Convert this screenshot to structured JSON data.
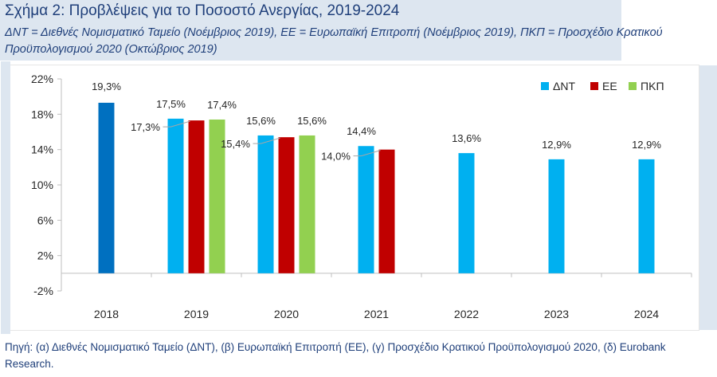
{
  "header": {
    "title": "Σχήμα 2: Προβλέψεις για το Ποσοστό Ανεργίας, 2019-2024",
    "subtitle": "ΔΝΤ = Διεθνές Νομισματικό Ταμείο (Νοέμβριος 2019), ΕΕ = Ευρωπαϊκή Επιτροπή (Νοέμβριος 2019), ΠΚΠ = Προσχέδιο Κρατικού Προϋπολογισμού 2020 (Οκτώβριος 2019)"
  },
  "source": "Πηγή: (α) Διεθνές Νομισματικό Ταμείο (ΔΝΤ), (β) Ευρωπαϊκή Επιτροπή (ΕΕ), (γ) Προσχέδιο Κρατικού Προϋπολογισμού 2020, (δ) Eurobank Research.",
  "chart_data": {
    "type": "bar",
    "title": "",
    "xlabel": "",
    "ylabel": "",
    "ylim": [
      -2,
      22
    ],
    "yticks": [
      -2,
      2,
      6,
      10,
      14,
      18,
      22
    ],
    "ytick_labels": [
      "-2%",
      "2%",
      "6%",
      "10%",
      "14%",
      "18%",
      "22%"
    ],
    "categories": [
      "2018",
      "2019",
      "2020",
      "2021",
      "2022",
      "2023",
      "2024"
    ],
    "legend_position": "top-right",
    "actual": {
      "category": "2018",
      "value": 19.3,
      "label": "19,3%",
      "color": "#0070c0"
    },
    "series": [
      {
        "name": "ΔΝΤ",
        "color": "#00b0f0",
        "values": [
          null,
          17.5,
          15.6,
          14.4,
          13.6,
          12.9,
          12.9
        ],
        "labels": [
          null,
          "17,5%",
          "15,6%",
          "14,4%",
          "13,6%",
          "12,9%",
          "12,9%"
        ]
      },
      {
        "name": "ΕΕ",
        "color": "#c00000",
        "values": [
          null,
          17.3,
          15.4,
          14.0,
          null,
          null,
          null
        ],
        "labels": [
          null,
          "17,3%",
          "15,4%",
          "14,0%",
          null,
          null,
          null
        ]
      },
      {
        "name": "ΠΚΠ",
        "color": "#92d050",
        "values": [
          null,
          17.4,
          15.6,
          null,
          null,
          null,
          null
        ],
        "labels": [
          null,
          "17,4%",
          "15,6%",
          null,
          null,
          null,
          null
        ]
      }
    ]
  }
}
